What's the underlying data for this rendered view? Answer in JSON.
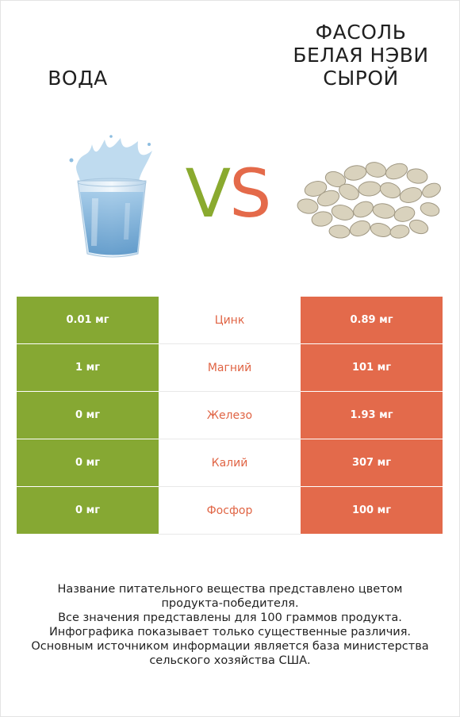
{
  "left_product": {
    "name": "Вода"
  },
  "right_product": {
    "name_lines": [
      "Фасоль",
      "белая нэви",
      "сырой"
    ]
  },
  "vs": {
    "v": "V",
    "s": "S"
  },
  "colors": {
    "left": "#86a833",
    "right": "#e36a4b"
  },
  "rows": [
    {
      "left": "0.01 мг",
      "nutrient": "Цинк",
      "right": "0.89 мг",
      "winner": "right"
    },
    {
      "left": "1 мг",
      "nutrient": "Магний",
      "right": "101 мг",
      "winner": "right"
    },
    {
      "left": "0 мг",
      "nutrient": "Железо",
      "right": "1.93 мг",
      "winner": "right"
    },
    {
      "left": "0 мг",
      "nutrient": "Калий",
      "right": "307 мг",
      "winner": "right"
    },
    {
      "left": "0 мг",
      "nutrient": "Фосфор",
      "right": "100 мг",
      "winner": "right"
    }
  ],
  "footer": {
    "lines": [
      "Название питательного вещества представлено цветом",
      "продукта-победителя.",
      "Все значения представлены для 100 граммов продукта.",
      "Инфографика показывает только существенные различия.",
      "Основным источником информации является база министерства",
      "сельского хозяйства США."
    ]
  }
}
